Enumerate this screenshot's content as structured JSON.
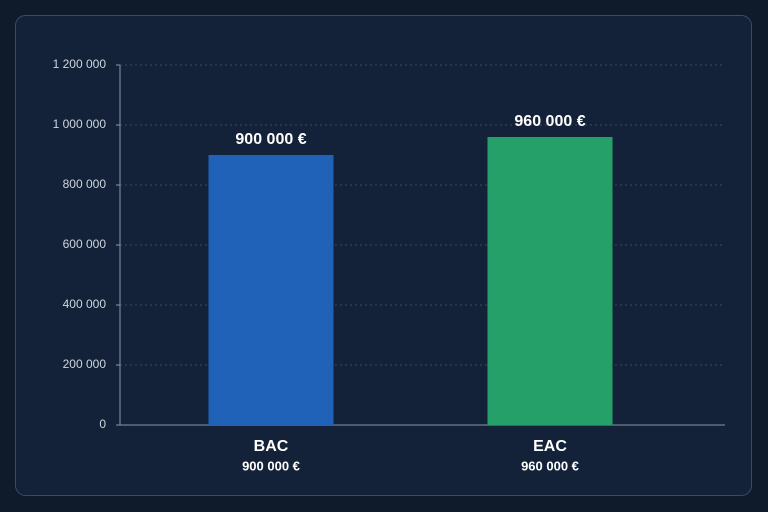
{
  "chart_data": {
    "type": "bar",
    "categories": [
      "BAC",
      "EAC"
    ],
    "values": [
      900000,
      960000
    ],
    "value_labels": [
      "900 000 €",
      "960 000 €"
    ],
    "colors": [
      "#1f62b8",
      "#25a069"
    ],
    "ylim": [
      0,
      1200000
    ],
    "yticks": [
      0,
      {
        "value": 200000,
        "label": "200 000"
      },
      {
        "value": 400000,
        "label": "400 000"
      },
      {
        "value": 600000,
        "label": "600 000"
      },
      {
        "value": 800000,
        "label": "800 000"
      },
      {
        "value": 1000000,
        "label": "1 000 000"
      },
      {
        "value": 1200000,
        "label": "1 200 000"
      }
    ],
    "grid": true
  }
}
